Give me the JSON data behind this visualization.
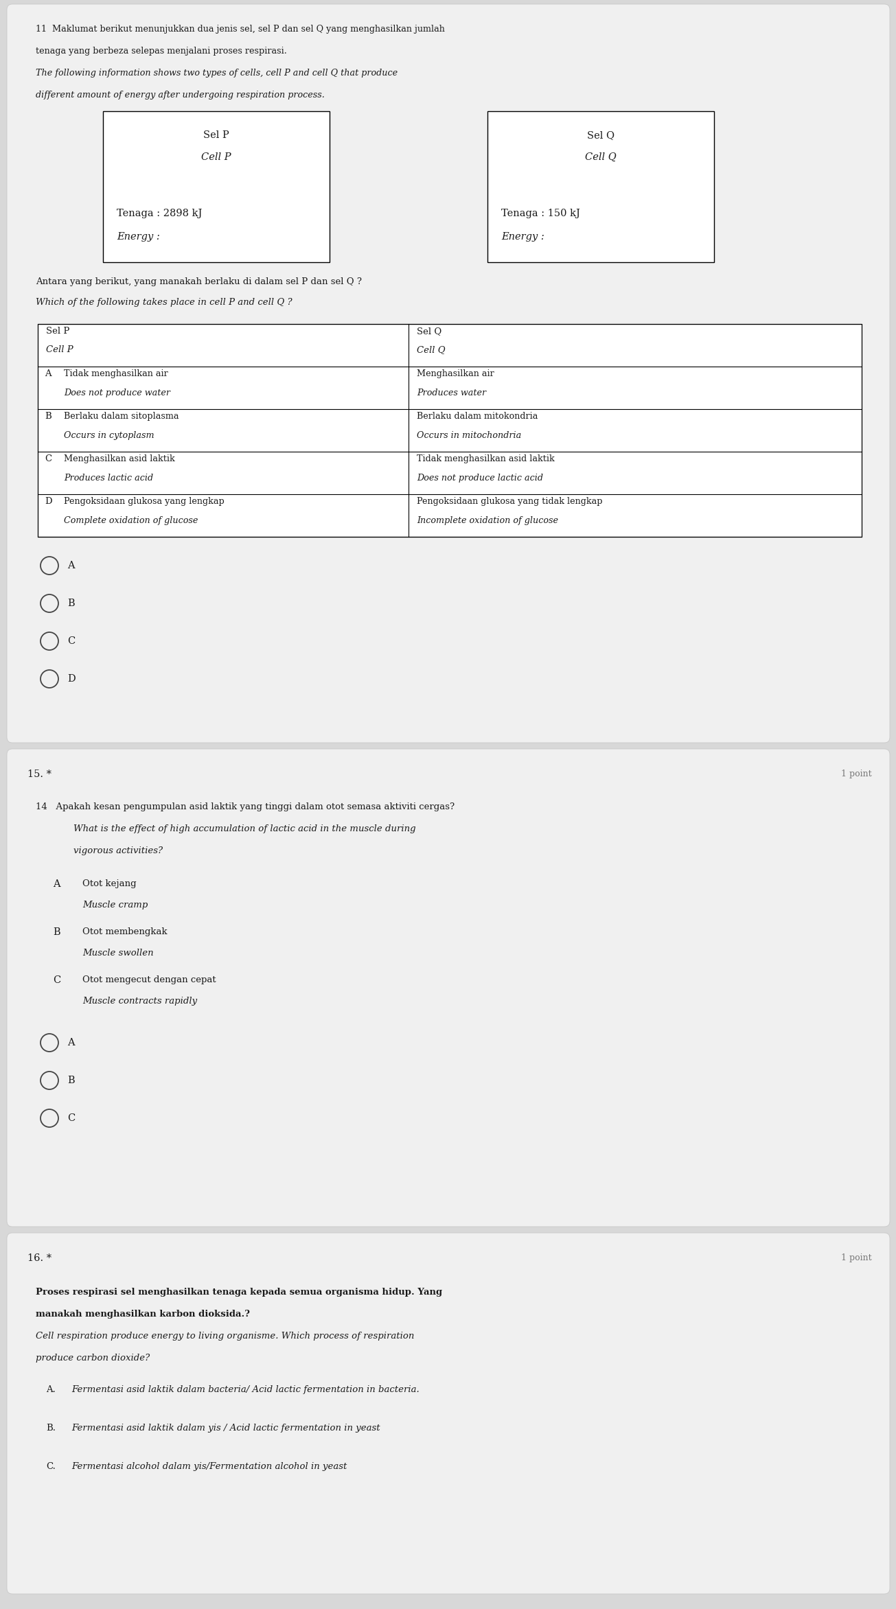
{
  "bg_color": "#d8d8d8",
  "card_color": "#f2f2f2",
  "white": "#ffffff",
  "black": "#1a1a1a",
  "gray": "#777777",
  "light_gray": "#e0e0e0",
  "q11_header": "11  Maklumat berikut menunjukkan dua jenis sel, sel P dan sel Q yang menghasilkan jumlah",
  "q11_header2": "tenaga yang berbeza selepas menjalani proses respirasi.",
  "q11_header3": "The following information shows two types of cells, cell P and cell Q that produce",
  "q11_header4": "different amount of energy after undergoing respiration process.",
  "cell_p_line1": "Sel P",
  "cell_p_line2": "Cell P",
  "cell_p_line3": "Tenaga : 2898 kJ",
  "cell_p_line4": "Energy :",
  "cell_q_line1": "Sel Q",
  "cell_q_line2": "Cell Q",
  "cell_q_line3": "Tenaga : 150 kJ",
  "cell_q_line4": "Energy :",
  "q11_subq": "Antara yang berikut, yang manakah berlaku di dalam sel P dan sel Q ?",
  "q11_subq2": "Which of the following takes place in cell P and cell Q ?",
  "table_col1_header1": "Sel P",
  "table_col1_header2": "Cell P",
  "table_col2_header1": "Sel Q",
  "table_col2_header2": "Cell Q",
  "table_rows": [
    {
      "label": "A",
      "col1_line1": "Tidak menghasilkan air",
      "col1_line2": "Does not produce water",
      "col2_line1": "Menghasilkan air",
      "col2_line2": "Produces water"
    },
    {
      "label": "B",
      "col1_line1": "Berlaku dalam sitoplasma",
      "col1_line2": "Occurs in cytoplasm",
      "col2_line1": "Berlaku dalam mitokondria",
      "col2_line2": "Occurs in mitochondria"
    },
    {
      "label": "C",
      "col1_line1": "Menghasilkan asid laktik",
      "col1_line2": "Produces lactic acid",
      "col2_line1": "Tidak menghasilkan asid laktik",
      "col2_line2": "Does not produce lactic acid"
    },
    {
      "label": "D",
      "col1_line1": "Pengoksidaan glukosa yang lengkap",
      "col1_line2": "Complete oxidation of glucose",
      "col2_line1": "Pengoksidaan glukosa yang tidak lengkap",
      "col2_line2": "Incomplete oxidation of glucose"
    }
  ],
  "radio_options_q11": [
    "A",
    "B",
    "C",
    "D"
  ],
  "q15_point": "1 point",
  "q15_num": "15. *",
  "q14_num": "14",
  "q14_text1": "Apakah kesan pengumpulan asid laktik yang tinggi dalam otot semasa aktiviti cergas?",
  "q14_text2": "What is the effect of high accumulation of lactic acid in the muscle during",
  "q14_text3": "vigorous activities?",
  "q14_options": [
    {
      "label": "A",
      "line1": "Otot kejang",
      "line2": "Muscle cramp"
    },
    {
      "label": "B",
      "line1": "Otot membengkak",
      "line2": "Muscle swollen"
    },
    {
      "label": "C",
      "line1": "Otot mengecut dengan cepat",
      "line2": "Muscle contracts rapidly"
    }
  ],
  "radio_options_q15": [
    "A",
    "B",
    "C"
  ],
  "q16_point": "1 point",
  "q16_num": "16. *",
  "q16_text1": "Proses respirasi sel menghasilkan tenaga kepada semua organisma hidup. Yang",
  "q16_text2": "manakah menghasilkan karbon dioksida.?",
  "q16_text3": "Cell respiration produce energy to living organisme. Which process of respiration",
  "q16_text4": "produce carbon dioxide?",
  "q16_options": [
    {
      "label": "A.",
      "line1": "Fermentasi asid laktik dalam bacteria/ Acid lactic fermentation in bacteria."
    },
    {
      "label": "B.",
      "line1": "Fermentasi asid laktik dalam yis / Acid lactic fermentation in yeast"
    },
    {
      "label": "C.",
      "line1": "Fermentasi alcohol dalam yis/Fermentation alcohol in yeast"
    }
  ]
}
